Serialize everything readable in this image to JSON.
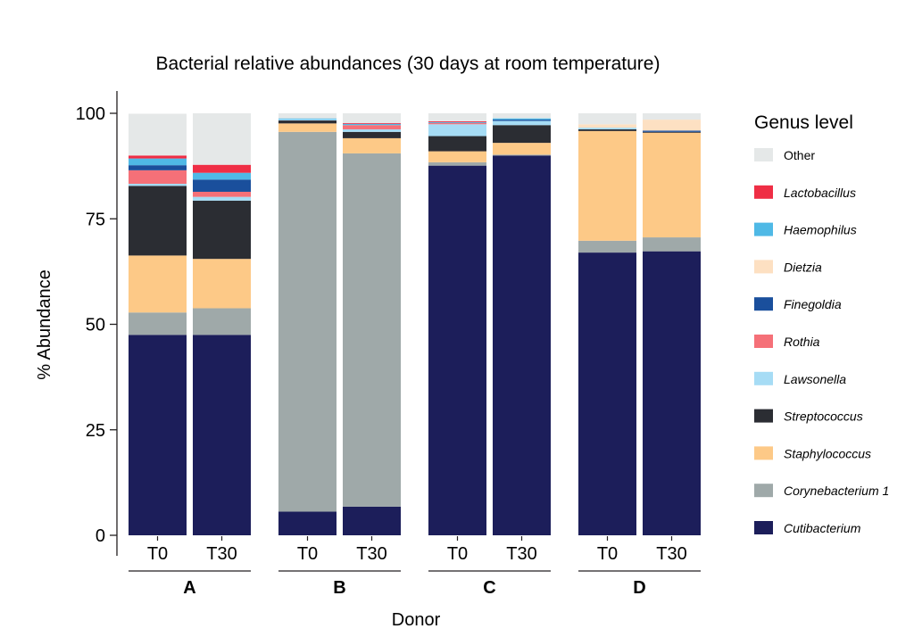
{
  "chart_data": {
    "type": "stacked-bar",
    "title": "Bacterial relative abundances (30 days at room temperature)",
    "xlabel": "Donor",
    "ylabel": "% Abundance",
    "ylim": [
      0,
      100
    ],
    "yticks": [
      0,
      25,
      50,
      75,
      100
    ],
    "groups": [
      {
        "label": "A",
        "bars": [
          {
            "label": "T0",
            "values": {
              "Cutibacterium": 47.5,
              "Corynebacterium 1": 5.3,
              "Staphylococcus": 13.5,
              "Streptococcus": 16.5,
              "Lawsonella": 0.5,
              "Rothia": 3.2,
              "Finegoldia": 1.2,
              "Dietzia": 0.0,
              "Haemophilus": 1.6,
              "Lactobacillus": 0.7,
              "Other": 9.9
            }
          },
          {
            "label": "T30",
            "values": {
              "Cutibacterium": 47.5,
              "Corynebacterium 1": 6.3,
              "Staphylococcus": 11.7,
              "Streptococcus": 13.8,
              "Lawsonella": 0.9,
              "Rothia": 1.2,
              "Finegoldia": 2.9,
              "Dietzia": 0.0,
              "Haemophilus": 1.6,
              "Lactobacillus": 1.9,
              "Other": 12.2
            }
          }
        ]
      },
      {
        "label": "B",
        "bars": [
          {
            "label": "T0",
            "values": {
              "Cutibacterium": 5.6,
              "Corynebacterium 1": 90.0,
              "Staphylococcus": 2.0,
              "Streptococcus": 0.7,
              "Lawsonella": 0.3,
              "Rothia": 0.0,
              "Finegoldia": 0.0,
              "Dietzia": 0.0,
              "Haemophilus": 0.2,
              "Lactobacillus": 0.0,
              "Other": 1.2
            }
          },
          {
            "label": "T30",
            "values": {
              "Cutibacterium": 6.8,
              "Corynebacterium 1": 83.7,
              "Staphylococcus": 3.6,
              "Streptococcus": 1.5,
              "Lawsonella": 0.6,
              "Rothia": 1.0,
              "Finegoldia": 0.0,
              "Dietzia": 0.0,
              "Haemophilus": 0.3,
              "Lactobacillus": 0.2,
              "Other": 2.3
            }
          }
        ]
      },
      {
        "label": "C",
        "bars": [
          {
            "label": "T0",
            "values": {
              "Cutibacterium": 87.6,
              "Corynebacterium 1": 0.8,
              "Staphylococcus": 2.6,
              "Streptococcus": 3.6,
              "Lawsonella": 2.8,
              "Rothia": 0.3,
              "Finegoldia": 0.0,
              "Dietzia": 0.0,
              "Haemophilus": 0.2,
              "Lactobacillus": 0.2,
              "Other": 1.9
            }
          },
          {
            "label": "T30",
            "values": {
              "Cutibacterium": 90.0,
              "Corynebacterium 1": 0.2,
              "Staphylococcus": 2.8,
              "Streptococcus": 4.2,
              "Lawsonella": 1.0,
              "Rothia": 0.0,
              "Finegoldia": 0.3,
              "Dietzia": 0.0,
              "Haemophilus": 0.3,
              "Lactobacillus": 0.0,
              "Other": 1.2
            }
          }
        ]
      },
      {
        "label": "D",
        "bars": [
          {
            "label": "T0",
            "values": {
              "Cutibacterium": 67.0,
              "Corynebacterium 1": 2.8,
              "Staphylococcus": 26.0,
              "Streptococcus": 0.4,
              "Lawsonella": 0.4,
              "Rothia": 0.0,
              "Finegoldia": 0.0,
              "Dietzia": 0.8,
              "Haemophilus": 0.0,
              "Lactobacillus": 0.0,
              "Other": 2.6
            }
          },
          {
            "label": "T30",
            "values": {
              "Cutibacterium": 67.3,
              "Corynebacterium 1": 3.3,
              "Staphylococcus": 24.8,
              "Streptococcus": 0.2,
              "Lawsonella": 0.0,
              "Rothia": 0.0,
              "Finegoldia": 0.3,
              "Dietzia": 2.6,
              "Haemophilus": 0.0,
              "Lactobacillus": 0.0,
              "Other": 1.5
            }
          }
        ]
      }
    ],
    "stack_order": [
      "Cutibacterium",
      "Corynebacterium 1",
      "Staphylococcus",
      "Streptococcus",
      "Lawsonella",
      "Rothia",
      "Finegoldia",
      "Dietzia",
      "Haemophilus",
      "Lactobacillus",
      "Other"
    ],
    "legend": {
      "title": "Genus level",
      "placement": "right",
      "items": [
        {
          "name": "Other",
          "color": "#e5e8e8",
          "italic": false
        },
        {
          "name": "Lactobacillus",
          "color": "#ef2e45",
          "italic": true
        },
        {
          "name": "Haemophilus",
          "color": "#4fb9e6",
          "italic": true
        },
        {
          "name": "Dietzia",
          "color": "#fde0c2",
          "italic": true
        },
        {
          "name": "Finegoldia",
          "color": "#1a4f9c",
          "italic": true
        },
        {
          "name": "Rothia",
          "color": "#f57078",
          "italic": true
        },
        {
          "name": "Lawsonella",
          "color": "#a6dcf5",
          "italic": true
        },
        {
          "name": "Streptococcus",
          "color": "#2b2d33",
          "italic": true
        },
        {
          "name": "Staphylococcus",
          "color": "#fdc987",
          "italic": true
        },
        {
          "name": "Corynebacterium 1",
          "color": "#9fa9a9",
          "italic": true
        },
        {
          "name": "Cutibacterium",
          "color": "#1c1e5a",
          "italic": true
        }
      ]
    }
  }
}
